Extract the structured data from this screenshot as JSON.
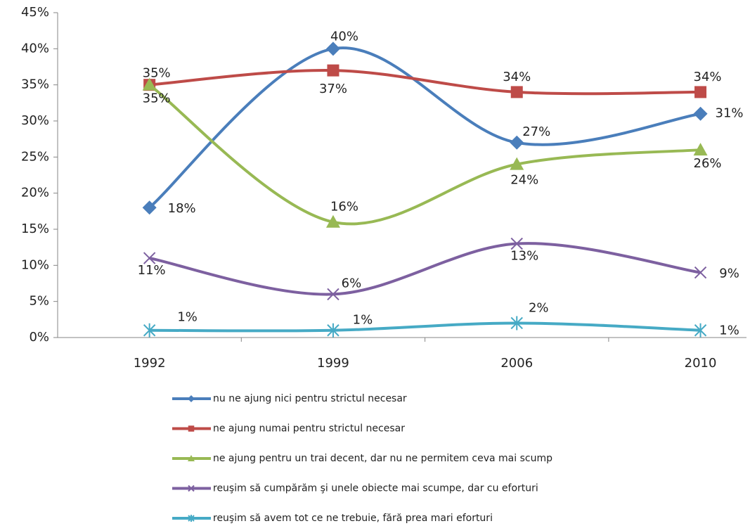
{
  "chart_data": {
    "type": "line",
    "categories": [
      "1992",
      "1999",
      "2006",
      "2010"
    ],
    "ylim": [
      0,
      45
    ],
    "yticks": [
      {
        "value": 0,
        "label": "0%"
      },
      {
        "value": 5,
        "label": "5%"
      },
      {
        "value": 10,
        "label": "10%"
      },
      {
        "value": 15,
        "label": "15%"
      },
      {
        "value": 20,
        "label": "20%"
      },
      {
        "value": 25,
        "label": "25%"
      },
      {
        "value": 30,
        "label": "30%"
      },
      {
        "value": 35,
        "label": "35%"
      },
      {
        "value": 40,
        "label": "40%"
      },
      {
        "value": 45,
        "label": "45%"
      }
    ],
    "grid": false,
    "legend": "bottom",
    "smooth": true,
    "series": [
      {
        "name": "nu ne ajung nici pentru strictul necesar",
        "color": "#4a7ebb",
        "marker": "diamond",
        "values": [
          18,
          40,
          27,
          31
        ],
        "value_labels": [
          "18%",
          "40%",
          "27%",
          "31%"
        ]
      },
      {
        "name": "ne ajung numai pentru strictul necesar",
        "color": "#be4b48",
        "marker": "square",
        "values": [
          35,
          37,
          34,
          34
        ],
        "value_labels": [
          "35%",
          "37%",
          "34%",
          "34%"
        ]
      },
      {
        "name": "ne ajung pentru un trai decent, dar nu ne permitem ceva mai scump",
        "color": "#98b954",
        "marker": "triangle",
        "values": [
          35,
          16,
          24,
          26
        ],
        "value_labels": [
          "35%",
          "16%",
          "24%",
          "26%"
        ]
      },
      {
        "name": "reuşim să cumpărăm şi unele obiecte mai scumpe, dar cu eforturi",
        "color": "#7d60a0",
        "marker": "x",
        "values": [
          11,
          6,
          13,
          9
        ],
        "value_labels": [
          "11%",
          "6%",
          "13%",
          "9%"
        ]
      },
      {
        "name": "reuşim să avem tot ce ne trebuie, fără prea mari eforturi",
        "color": "#46aac5",
        "marker": "star",
        "values": [
          1,
          1,
          2,
          1
        ],
        "value_labels": [
          "1%",
          "1%",
          "2%",
          "1%"
        ]
      }
    ]
  }
}
